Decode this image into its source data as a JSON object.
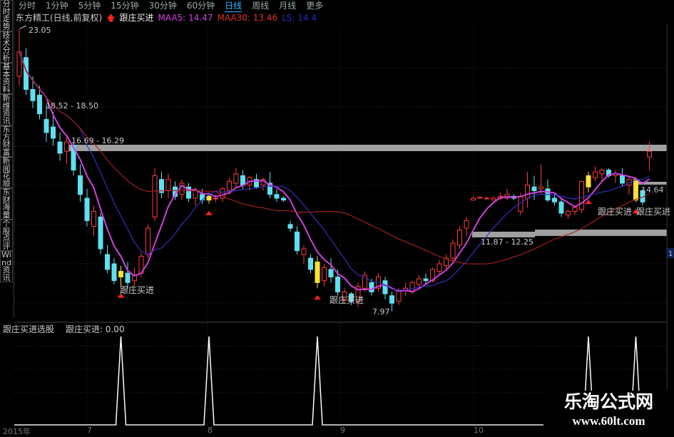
{
  "sidebar": {
    "items": [
      {
        "label": "分时走势"
      },
      {
        "label": "技术分析"
      },
      {
        "label": "基本资料"
      },
      {
        "label": "新维资讯"
      },
      {
        "label": "东方财富"
      },
      {
        "label": "新闻花顺"
      },
      {
        "label": "东财海量"
      },
      {
        "label": "个股点评"
      },
      {
        "label": "Wind资讯"
      }
    ]
  },
  "period_tabs": [
    {
      "label": "分时"
    },
    {
      "label": "1分钟"
    },
    {
      "label": "5分钟"
    },
    {
      "label": "15分钟"
    },
    {
      "label": "30分钟"
    },
    {
      "label": "60分钟"
    },
    {
      "label": "日线",
      "active": true
    },
    {
      "label": "周线"
    },
    {
      "label": "月线"
    },
    {
      "label": "更多"
    }
  ],
  "info": {
    "stock": "东方精工(日线,前复权)",
    "indicator": "跟庄买进",
    "ma5": "MAA5: 14.47",
    "ma30": "MAA30: 13.46",
    "ls": "LS: 14.4"
  },
  "annotations": {
    "high": "23.05",
    "low": "7.97",
    "last": "14.64",
    "range1": "18.52 - 18.50",
    "range2": "16.69 - 16.29",
    "range3": "11.87 - 12.25",
    "signal_label": "跟庄买进",
    "right_marker": "1"
  },
  "lower_panel": {
    "title": "跟庄买进选股",
    "value": "跟庄买进: 0.00"
  },
  "x_axis": [
    "2015年",
    "7",
    "8",
    "9",
    "10"
  ],
  "watermark": {
    "title": "乐淘公式网",
    "url": "www.60lt.com"
  },
  "colors": {
    "up": "#ff3b3b",
    "down": "#5ee0f0",
    "signal": "#ffe033",
    "ma5": "#d040e0",
    "ma10": "#3030c0",
    "ma30": "#a02020",
    "band": "#a0a0a0"
  },
  "chart_data": {
    "type": "candlestick",
    "ohlc": [
      [
        20.5,
        23.05,
        20,
        21.8
      ],
      [
        21.5,
        22,
        19.5,
        19.8
      ],
      [
        19.8,
        20.5,
        18.8,
        19.2
      ],
      [
        19.5,
        20,
        18.2,
        18.5
      ],
      [
        18.2,
        19,
        17,
        17.5
      ],
      [
        17.8,
        18.6,
        16.8,
        17.2
      ],
      [
        17,
        17.5,
        16,
        16.4
      ],
      [
        16.5,
        17.3,
        15.8,
        17
      ],
      [
        16.8,
        17,
        15.2,
        15.5
      ],
      [
        15.2,
        15.8,
        13.8,
        14.2
      ],
      [
        14,
        14.5,
        12.5,
        12.8
      ],
      [
        12.5,
        13.6,
        12,
        13.3
      ],
      [
        13,
        13.2,
        11,
        11.3
      ],
      [
        11,
        11.5,
        10,
        10.2
      ],
      [
        10.5,
        10.8,
        9.4,
        9.6
      ],
      [
        9.8,
        10.4,
        9.3,
        10.1
      ],
      [
        10,
        10.6,
        9.2,
        9.5
      ],
      [
        9.6,
        10.3,
        9.3,
        9.9
      ],
      [
        10,
        11.1,
        9.8,
        10.9
      ],
      [
        11,
        12.6,
        10.8,
        12.4
      ],
      [
        13,
        15.6,
        12.8,
        15.2
      ],
      [
        15,
        15.4,
        14,
        14.3
      ],
      [
        14.4,
        15.3,
        14,
        15
      ],
      [
        14.6,
        14.9,
        13.9,
        14.1
      ],
      [
        14.2,
        15,
        13.9,
        14.8
      ],
      [
        14.6,
        14.8,
        13.8,
        14
      ],
      [
        14,
        14.6,
        13.6,
        14.4
      ],
      [
        14.2,
        14.5,
        13.7,
        13.9
      ],
      [
        13.9,
        14.3,
        13.7,
        14.1
      ],
      [
        14,
        14.2,
        13.8,
        14
      ],
      [
        14,
        14.6,
        13.8,
        14.5
      ],
      [
        14.4,
        15.1,
        14.2,
        14.9
      ],
      [
        14.8,
        15.6,
        14.6,
        15.3
      ],
      [
        15.2,
        15.5,
        14.5,
        14.7
      ],
      [
        14.7,
        15.2,
        14.4,
        15.1
      ],
      [
        15,
        15.3,
        14.5,
        14.6
      ],
      [
        14.7,
        15.1,
        14.4,
        15
      ],
      [
        14.8,
        15.4,
        14,
        14.2
      ],
      [
        14.2,
        14.5,
        13.8,
        14
      ],
      [
        14,
        14.1,
        13.8,
        13.9
      ],
      [
        12.6,
        12.8,
        12.2,
        12.4
      ],
      [
        12.2,
        12.5,
        11,
        11.2
      ],
      [
        11,
        11.5,
        10.5,
        11.3
      ],
      [
        10.8,
        11,
        10,
        10.2
      ],
      [
        9.5,
        10.9,
        9.2,
        10.6
      ],
      [
        9.6,
        10.5,
        9.3,
        10.3
      ],
      [
        10.2,
        10.8,
        9.5,
        9.8
      ],
      [
        9.8,
        10.2,
        8.8,
        9
      ],
      [
        8.6,
        9.2,
        8.4,
        9
      ],
      [
        8.9,
        9,
        8.3,
        8.5
      ],
      [
        8.5,
        9.5,
        8.2,
        9.3
      ],
      [
        9.2,
        10.1,
        9,
        9.9
      ],
      [
        9.5,
        9.7,
        8.8,
        9
      ],
      [
        9.2,
        10,
        9,
        9.8
      ],
      [
        9.6,
        9.8,
        8.6,
        8.9
      ],
      [
        8.8,
        9,
        7.97,
        8.4
      ],
      [
        8.5,
        9.2,
        8.3,
        9.1
      ],
      [
        9.1,
        9.5,
        8.8,
        9.2
      ],
      [
        9,
        9.6,
        8.9,
        9.5
      ],
      [
        9.4,
        9.9,
        9.2,
        9.7
      ],
      [
        9.7,
        10,
        9.4,
        9.6
      ],
      [
        9.6,
        10.3,
        9.5,
        10.2
      ],
      [
        10.1,
        10.7,
        9.9,
        10.5
      ],
      [
        10.4,
        11,
        10.2,
        10.8
      ],
      [
        10.8,
        11.8,
        10.6,
        11.6
      ],
      [
        11.5,
        12.5,
        11.3,
        12.3
      ],
      [
        12.4,
        13,
        12,
        12.8
      ],
      [
        13.9,
        14.1,
        13.9,
        14
      ],
      [
        14,
        14.1,
        14,
        14.05
      ],
      [
        14,
        14.1,
        13.95,
        14
      ],
      [
        13.9,
        14.1,
        13.9,
        14
      ],
      [
        14,
        14.3,
        13.9,
        14.1
      ],
      [
        14,
        14.5,
        13.9,
        14.2
      ],
      [
        14.1,
        14.2,
        13.9,
        14
      ],
      [
        13.3,
        14.3,
        13.1,
        14.1
      ],
      [
        14,
        15.4,
        13.5,
        14.7
      ],
      [
        14.6,
        15.2,
        13.9,
        14.4
      ],
      [
        14.5,
        15.8,
        14.2,
        14.6
      ],
      [
        14.5,
        15,
        13.8,
        13.9
      ],
      [
        14,
        14.3,
        13.6,
        13.8
      ],
      [
        13.8,
        14,
        13,
        13.2
      ],
      [
        13.1,
        13.4,
        12.9,
        13.3
      ],
      [
        13.3,
        13.6,
        13.1,
        13.5
      ],
      [
        13.4,
        14.9,
        13.2,
        14.9
      ],
      [
        14.6,
        15.4,
        14.3,
        15.2
      ],
      [
        15.1,
        15.7,
        14.9,
        15.4
      ],
      [
        15.3,
        15.6,
        14.9,
        15.5
      ],
      [
        15.5,
        15.6,
        15.1,
        15.2
      ],
      [
        15.2,
        15.5,
        14.8,
        15.3
      ],
      [
        15.2,
        15.6,
        14.6,
        14.8
      ],
      [
        14.7,
        15.2,
        14.2,
        15
      ],
      [
        13.9,
        15.1,
        13.8,
        15
      ],
      [
        14.4,
        14.5,
        13.6,
        13.8
      ],
      [
        16.2,
        17,
        15.5,
        16.5
      ]
    ],
    "signals": [
      15,
      28,
      44,
      84,
      91
    ],
    "signal_value_range": [
      0,
      1
    ],
    "price_range": [
      7.97,
      23.05
    ],
    "moving_averages": [
      5,
      10,
      30
    ]
  }
}
